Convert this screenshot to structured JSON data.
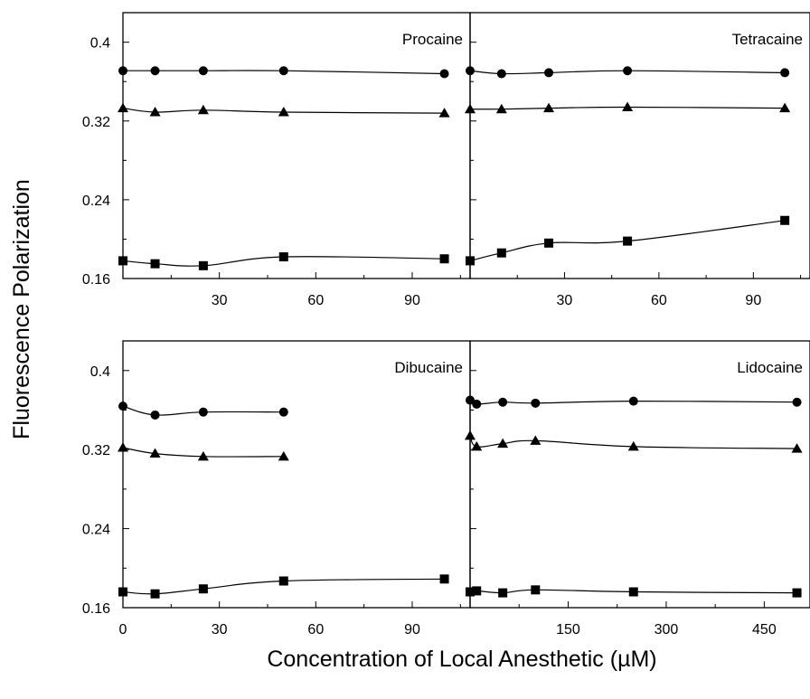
{
  "figure": {
    "ylabel": "Fluorescence  Polarization",
    "xlabel": "Concentration of Local Anesthetic (µM)"
  },
  "chart_data": [
    {
      "type": "line",
      "title": "Procaine",
      "xlim": [
        0,
        108
      ],
      "ylim": [
        0.16,
        0.43
      ],
      "xticks": [
        30,
        60,
        90
      ],
      "yticks": [
        0.16,
        0.24,
        0.32,
        0.4
      ],
      "x_tick_labels_shown": true,
      "y_tick_labels_shown": true,
      "series": [
        {
          "marker": "circle",
          "x": [
            0,
            10,
            25,
            50,
            100
          ],
          "y": [
            0.371,
            0.371,
            0.371,
            0.371,
            0.368
          ]
        },
        {
          "marker": "triangle",
          "x": [
            0,
            10,
            25,
            50,
            100
          ],
          "y": [
            0.333,
            0.329,
            0.331,
            0.329,
            0.328
          ]
        },
        {
          "marker": "square",
          "x": [
            0,
            10,
            25,
            50,
            100
          ],
          "y": [
            0.178,
            0.175,
            0.173,
            0.182,
            0.18
          ]
        }
      ]
    },
    {
      "type": "line",
      "title": "Tetracaine",
      "xlim": [
        0,
        108
      ],
      "ylim": [
        0.16,
        0.43
      ],
      "xticks": [
        30,
        60,
        90
      ],
      "yticks": [
        0.16,
        0.24,
        0.32,
        0.4
      ],
      "x_tick_labels_shown": true,
      "y_tick_labels_shown": false,
      "series": [
        {
          "marker": "circle",
          "x": [
            0,
            10,
            25,
            50,
            100
          ],
          "y": [
            0.371,
            0.368,
            0.369,
            0.371,
            0.369
          ]
        },
        {
          "marker": "triangle",
          "x": [
            0,
            10,
            25,
            50,
            100
          ],
          "y": [
            0.332,
            0.332,
            0.333,
            0.334,
            0.333
          ]
        },
        {
          "marker": "square",
          "x": [
            0,
            10,
            25,
            50,
            100
          ],
          "y": [
            0.178,
            0.186,
            0.196,
            0.198,
            0.219
          ]
        }
      ]
    },
    {
      "type": "line",
      "title": "Dibucaine",
      "xlim": [
        0,
        108
      ],
      "ylim": [
        0.16,
        0.43
      ],
      "xticks": [
        0,
        30,
        60,
        90
      ],
      "yticks": [
        0.16,
        0.24,
        0.32,
        0.4
      ],
      "x_tick_labels_shown": true,
      "y_tick_labels_shown": true,
      "series": [
        {
          "marker": "circle",
          "x": [
            0,
            10,
            25,
            50
          ],
          "y": [
            0.364,
            0.355,
            0.358,
            0.358
          ]
        },
        {
          "marker": "triangle",
          "x": [
            0,
            10,
            25,
            50
          ],
          "y": [
            0.322,
            0.316,
            0.313,
            0.313
          ]
        },
        {
          "marker": "square",
          "x": [
            0,
            10,
            25,
            50,
            100
          ],
          "y": [
            0.176,
            0.174,
            0.179,
            0.187,
            0.189
          ]
        }
      ]
    },
    {
      "type": "line",
      "title": "Lidocaine",
      "xlim": [
        0,
        520
      ],
      "ylim": [
        0.16,
        0.43
      ],
      "xticks": [
        150,
        300,
        450
      ],
      "yticks": [
        0.16,
        0.24,
        0.32,
        0.4
      ],
      "x_tick_labels_shown": true,
      "y_tick_labels_shown": false,
      "series": [
        {
          "marker": "circle",
          "x": [
            0,
            10,
            50,
            100,
            250,
            500
          ],
          "y": [
            0.37,
            0.366,
            0.368,
            0.367,
            0.369,
            0.368
          ]
        },
        {
          "marker": "triangle",
          "x": [
            0,
            10,
            50,
            100,
            250,
            500
          ],
          "y": [
            0.334,
            0.323,
            0.326,
            0.329,
            0.323,
            0.321
          ]
        },
        {
          "marker": "square",
          "x": [
            0,
            10,
            50,
            100,
            250,
            500
          ],
          "y": [
            0.176,
            0.177,
            0.175,
            0.178,
            0.176,
            0.175
          ]
        }
      ]
    }
  ]
}
